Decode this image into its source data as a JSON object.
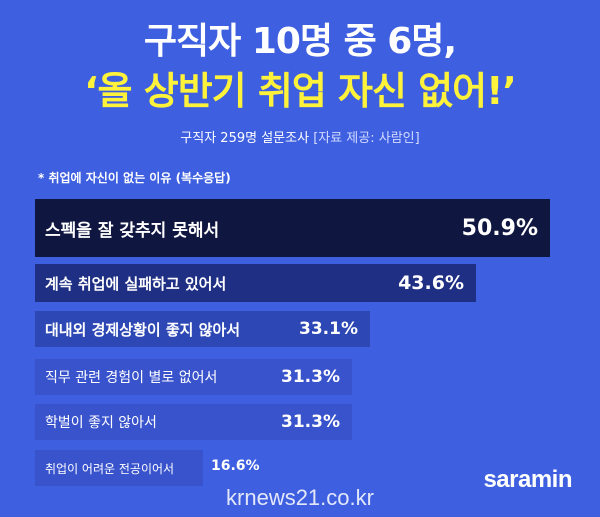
{
  "header": {
    "title_line1": "구직자 10명 중 6명,",
    "title_line2": "‘올 상반기 취업 자신 없어!’",
    "survey": "구직자 259명 설문조사",
    "source": "[자료 제공: 사람인]"
  },
  "note": "* 취업에 자신이 없는 이유 (복수응답)",
  "chart_data": {
    "type": "bar",
    "orientation": "horizontal",
    "title": "",
    "xlabel": "",
    "ylabel": "",
    "unit": "%",
    "categories": [
      "스펙을 잘 갖추지 못해서",
      "계속 취업에 실패하고 있어서",
      "대내외 경제상황이 좋지 않아서",
      "직무 관련 경험이 별로 없어서",
      "학벌이 좋지 않아서",
      "취업이 어려운 전공이어서"
    ],
    "values": [
      50.9,
      43.6,
      33.1,
      31.3,
      31.3,
      16.6
    ],
    "value_labels": [
      "50.9%",
      "43.6%",
      "33.1%",
      "31.3%",
      "31.3%",
      "16.6%"
    ],
    "bar_colors": [
      "#0f1640",
      "#1e2f84",
      "#2d48b5",
      "#3953cc",
      "#3953cc",
      "#3953cc"
    ]
  },
  "branding": {
    "logo": "saramin",
    "watermark": "krnews21.co.kr"
  }
}
